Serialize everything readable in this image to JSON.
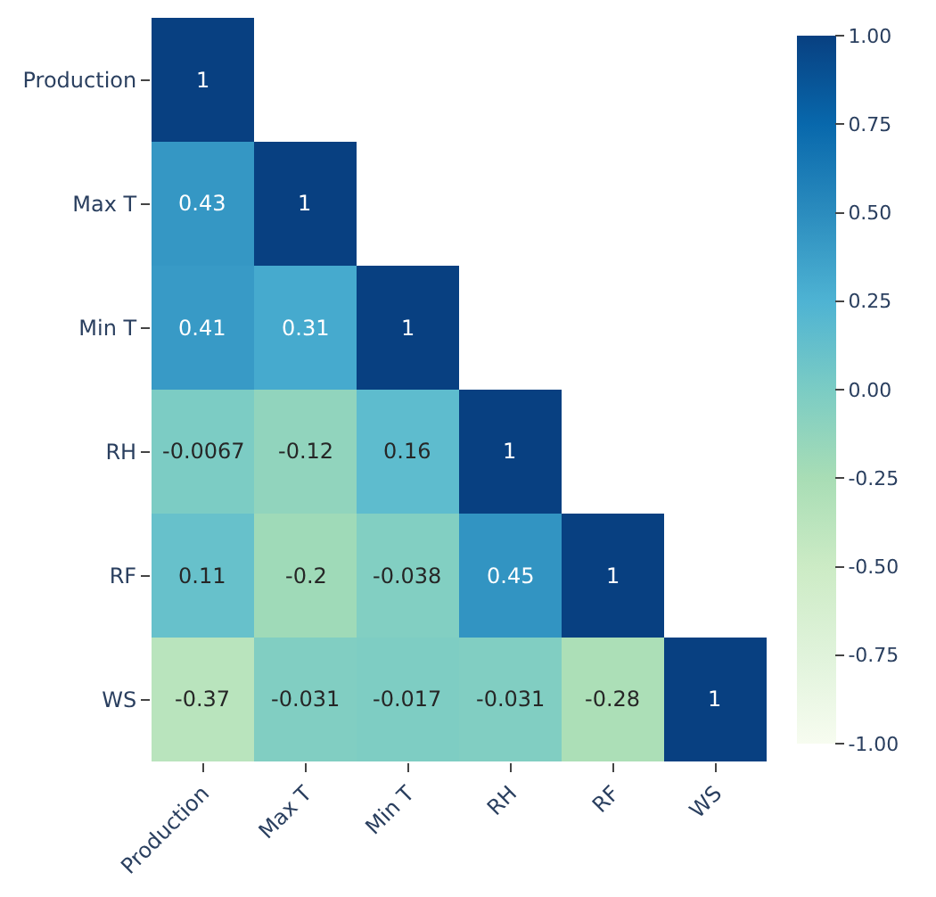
{
  "chart_data": {
    "type": "heatmap",
    "categories": [
      "Production",
      "Max T",
      "Min T",
      "RH",
      "RF",
      "WS"
    ],
    "y_categories": [
      "Production",
      "Max T",
      "Min T",
      "RH",
      "RF",
      "WS"
    ],
    "cells": [
      [
        1,
        null,
        null,
        null,
        null,
        null
      ],
      [
        0.43,
        1,
        null,
        null,
        null,
        null
      ],
      [
        0.41,
        0.31,
        1,
        null,
        null,
        null
      ],
      [
        -0.0067,
        -0.12,
        0.16,
        1,
        null,
        null
      ],
      [
        0.11,
        -0.2,
        -0.038,
        0.45,
        1,
        null
      ],
      [
        -0.37,
        -0.031,
        -0.017,
        -0.031,
        -0.28,
        1
      ]
    ],
    "clim": [
      -1,
      1
    ],
    "cticks": [
      {
        "value": -1,
        "label": "-1.00"
      },
      {
        "value": -0.75,
        "label": "-0.75"
      },
      {
        "value": -0.5,
        "label": "-0.50"
      },
      {
        "value": -0.25,
        "label": "-0.25"
      },
      {
        "value": 0,
        "label": "0.00"
      },
      {
        "value": 0.25,
        "label": "0.25"
      },
      {
        "value": 0.5,
        "label": "0.50"
      },
      {
        "value": 0.75,
        "label": "0.75"
      },
      {
        "value": 1,
        "label": "1.00"
      }
    ],
    "data_labels": true
  }
}
